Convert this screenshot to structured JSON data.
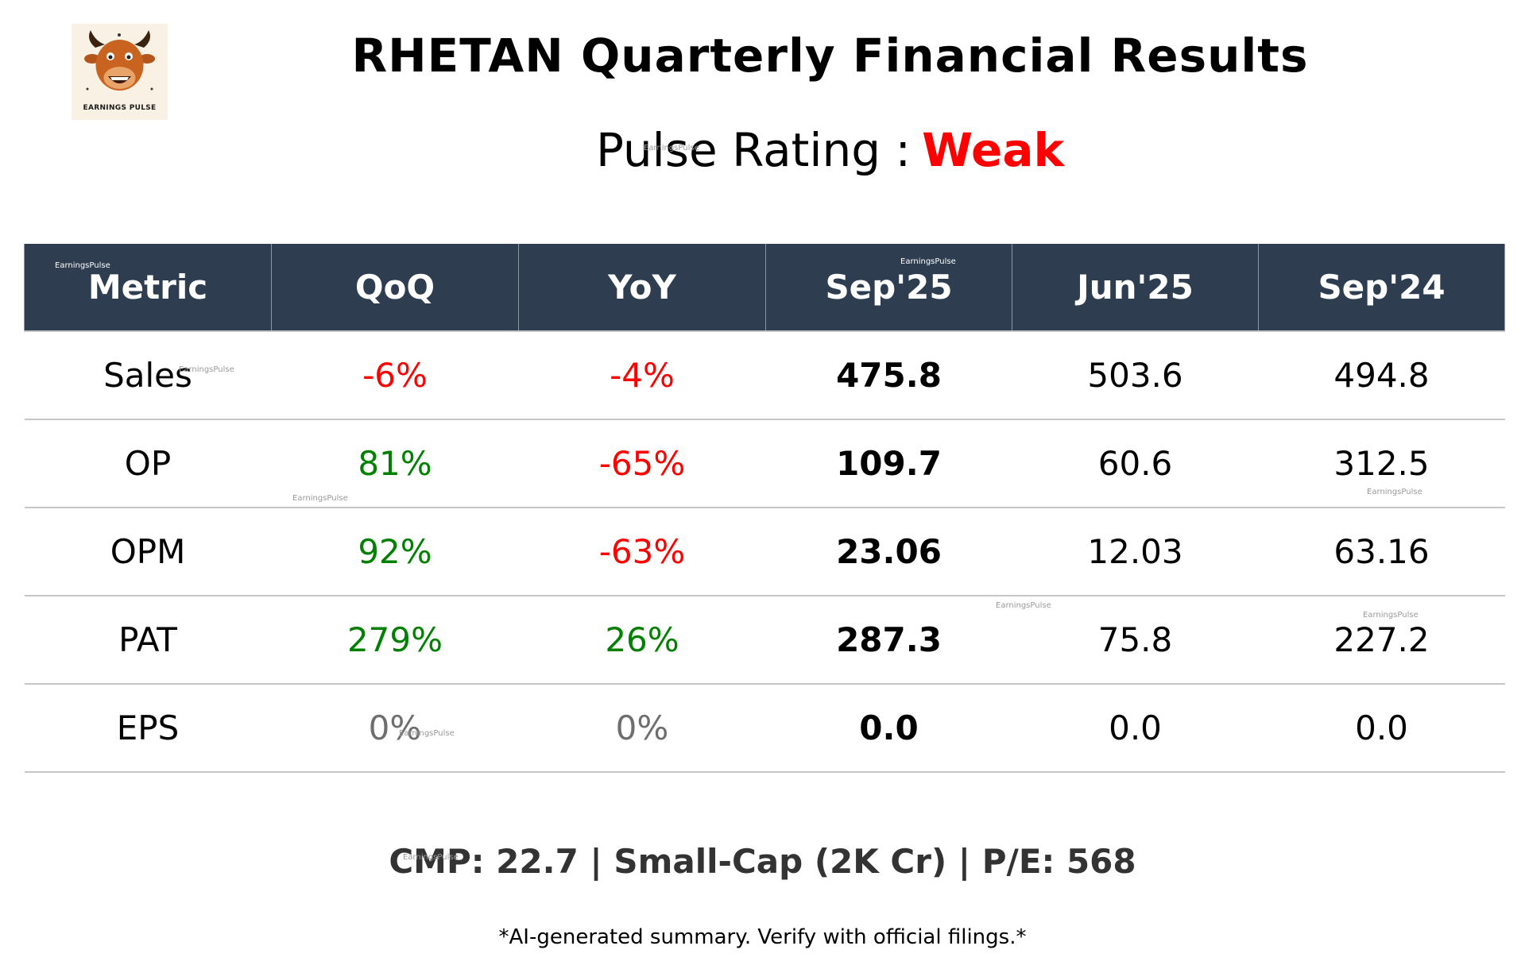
{
  "header": {
    "logo_text": "EARNINGS PULSE",
    "title": "RHETAN Quarterly Financial Results",
    "rating_label": "Pulse Rating :",
    "rating_value": "Weak"
  },
  "table": {
    "columns": [
      "Metric",
      "QoQ",
      "YoY",
      "Sep'25",
      "Jun'25",
      "Sep'24"
    ],
    "rows": [
      {
        "metric": "Sales",
        "qoq": "-6%",
        "qoq_trend": "neg",
        "yoy": "-4%",
        "yoy_trend": "neg",
        "sep25": "475.8",
        "jun25": "503.6",
        "sep24": "494.8"
      },
      {
        "metric": "OP",
        "qoq": "81%",
        "qoq_trend": "pos",
        "yoy": "-65%",
        "yoy_trend": "neg",
        "sep25": "109.7",
        "jun25": "60.6",
        "sep24": "312.5"
      },
      {
        "metric": "OPM",
        "qoq": "92%",
        "qoq_trend": "pos",
        "yoy": "-63%",
        "yoy_trend": "neg",
        "sep25": "23.06",
        "jun25": "12.03",
        "sep24": "63.16"
      },
      {
        "metric": "PAT",
        "qoq": "279%",
        "qoq_trend": "pos",
        "yoy": "26%",
        "yoy_trend": "pos",
        "sep25": "287.3",
        "jun25": "75.8",
        "sep24": "227.2"
      },
      {
        "metric": "EPS",
        "qoq": "0%",
        "qoq_trend": "zero",
        "yoy": "0%",
        "yoy_trend": "zero",
        "sep25": "0.0",
        "jun25": "0.0",
        "sep24": "0.0"
      }
    ]
  },
  "footer": {
    "info": "CMP: 22.7 | Small-Cap (2K Cr) | P/E: 568",
    "disclaimer": "*AI-generated summary. Verify with official filings.*"
  },
  "watermark": "EarningsPulse",
  "colors": {
    "header_bg": "#2e3e50",
    "negative": "#ff0000",
    "positive": "#008000",
    "neutral": "#6e6e6e",
    "rating_weak": "#ff0000"
  }
}
